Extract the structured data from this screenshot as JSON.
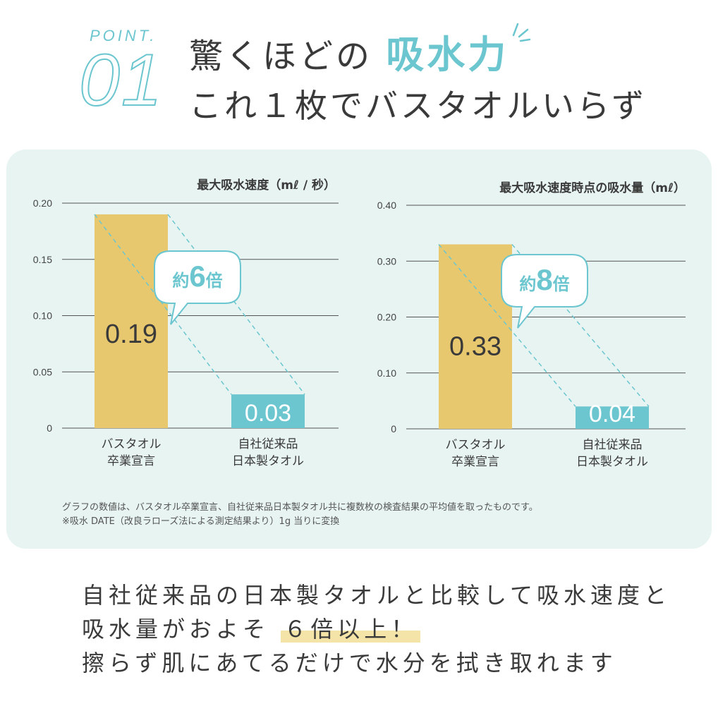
{
  "header": {
    "point_label": "POINT.",
    "point_number": "01",
    "headline_prefix": "驚くほどの",
    "headline_accent": "吸水力",
    "headline_line2": "これ１枚でバスタオルいらず"
  },
  "colors": {
    "accent": "#6cc6cf",
    "bar_primary": "#e8c86e",
    "bar_secondary": "#6cc6cf",
    "panel_bg": "#e7f4f2",
    "highlight": "#f4e4a8"
  },
  "chart_data": [
    {
      "type": "bar",
      "title": "最大吸水速度（mℓ / 秒）",
      "categories": [
        "バスタオル\n卒業宣言",
        "自社従来品\n日本製タオル"
      ],
      "values": [
        0.19,
        0.03
      ],
      "value_labels": [
        "0.19",
        "0.03"
      ],
      "yticks": [
        "0",
        "0.05",
        "0.10",
        "0.15",
        "0.20"
      ],
      "ylim": [
        0,
        0.2
      ],
      "grid": true,
      "callout": {
        "prefix": "約",
        "number": "6",
        "suffix": "倍"
      }
    },
    {
      "type": "bar",
      "title": "最大吸水速度時点の吸水量（mℓ）",
      "categories": [
        "バスタオル\n卒業宣言",
        "自社従来品\n日本製タオル"
      ],
      "values": [
        0.33,
        0.04
      ],
      "value_labels": [
        "0.33",
        "0.04"
      ],
      "yticks": [
        "0",
        "0.10",
        "0.20",
        "0.30",
        "0.40"
      ],
      "ylim": [
        0,
        0.4
      ],
      "grid": true,
      "callout": {
        "prefix": "約",
        "number": "8",
        "suffix": "倍"
      }
    }
  ],
  "notes": {
    "line1": "グラフの数値は、バスタオル卒業宣言、自社従来品日本製タオル共に複数枚の検査結果の平均値を取ったものです。",
    "line2": "※吸水 DATE（改良ラローズ法による測定結果より）1g 当りに変換"
  },
  "body_text": {
    "line1": "自社従来品の日本製タオルと比較して吸水速度と",
    "line2_prefix": "吸水量がおよそ",
    "line2_highlight": "６倍以上！",
    "line3": "擦らず肌にあてるだけで水分を拭き取れます"
  }
}
